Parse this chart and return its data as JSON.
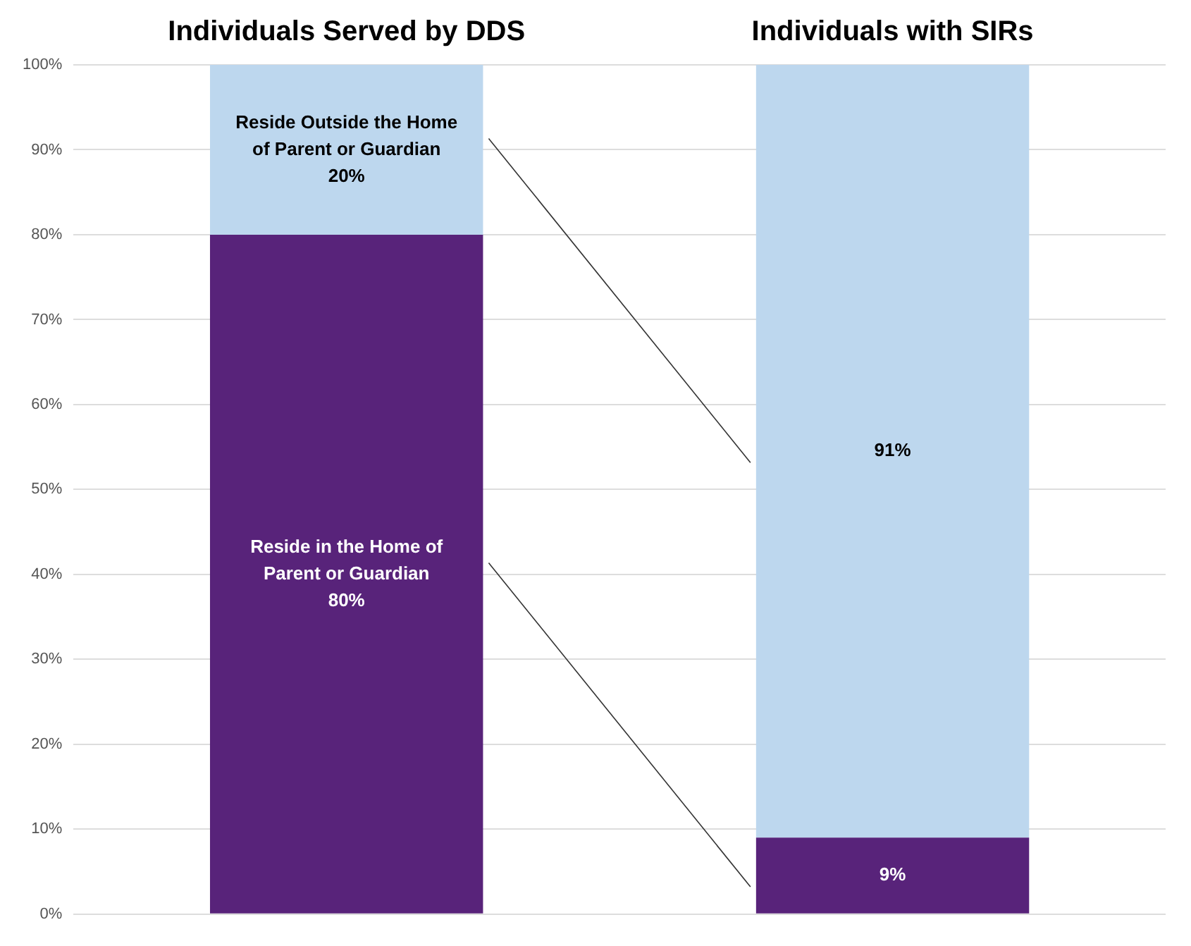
{
  "chart_data": {
    "type": "bar",
    "stacked": true,
    "categories": [
      "Individuals Served by DDS",
      "Individuals with SIRs"
    ],
    "series": [
      {
        "name": "Reside in the Home of Parent or Guardian",
        "color": "#58237a",
        "values": [
          80,
          9
        ],
        "value_labels": [
          "80%",
          "9%"
        ]
      },
      {
        "name": "Reside Outside the Home of Parent or Guardian",
        "color": "#bdd7ee",
        "values": [
          20,
          91
        ],
        "value_labels": [
          "20%",
          "91%"
        ]
      }
    ],
    "ylim": [
      0,
      100
    ],
    "yticks": [
      {
        "value": 0,
        "label": "0%"
      },
      {
        "value": 10,
        "label": "10%"
      },
      {
        "value": 20,
        "label": "20%"
      },
      {
        "value": 30,
        "label": "30%"
      },
      {
        "value": 40,
        "label": "40%"
      },
      {
        "value": 50,
        "label": "50%"
      },
      {
        "value": 60,
        "label": "60%"
      },
      {
        "value": 70,
        "label": "70%"
      },
      {
        "value": 80,
        "label": "80%"
      },
      {
        "value": 90,
        "label": "90%"
      },
      {
        "value": 100,
        "label": "100%"
      }
    ],
    "grid": "y",
    "legend": false
  }
}
